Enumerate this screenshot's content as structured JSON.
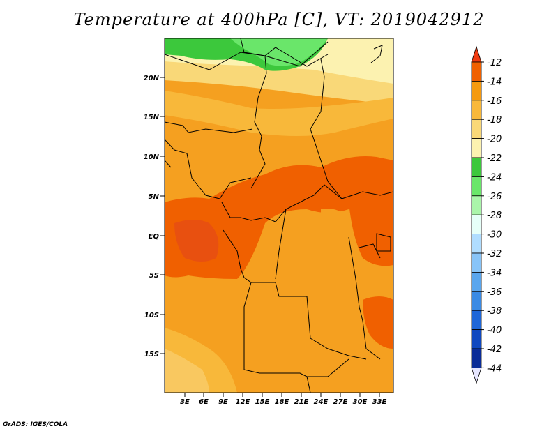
{
  "title": "Temperature at 400hPa [C], VT: 2019042912",
  "credit": "GrADS: IGES/COLA",
  "map": {
    "lat_labels": [
      "20N",
      "15N",
      "10N",
      "5N",
      "EQ",
      "5S",
      "10S",
      "15S"
    ],
    "lon_labels": [
      "3E",
      "6E",
      "9E",
      "12E",
      "15E",
      "18E",
      "21E",
      "24E",
      "27E",
      "30E",
      "33E"
    ]
  },
  "colorbar": {
    "levels": [
      "-12",
      "-14",
      "-16",
      "-18",
      "-20",
      "-22",
      "-24",
      "-26",
      "-28",
      "-30",
      "-32",
      "-34",
      "-36",
      "-38",
      "-40",
      "-42",
      "-44"
    ],
    "colors": [
      "#e83a10",
      "#f06000",
      "#f59a10",
      "#f8b83a",
      "#f9d878",
      "#fcf2b0",
      "#3cc83c",
      "#6ae66a",
      "#aaf5aa",
      "#e6fff8",
      "#b0ddff",
      "#88c4f8",
      "#5aa6ee",
      "#3a8ae4",
      "#1e66d8",
      "#0f48c0",
      "#0a2c98",
      "#000a70"
    ],
    "top_color": "#f03a10",
    "bottom_color": "#e6e6ff"
  }
}
